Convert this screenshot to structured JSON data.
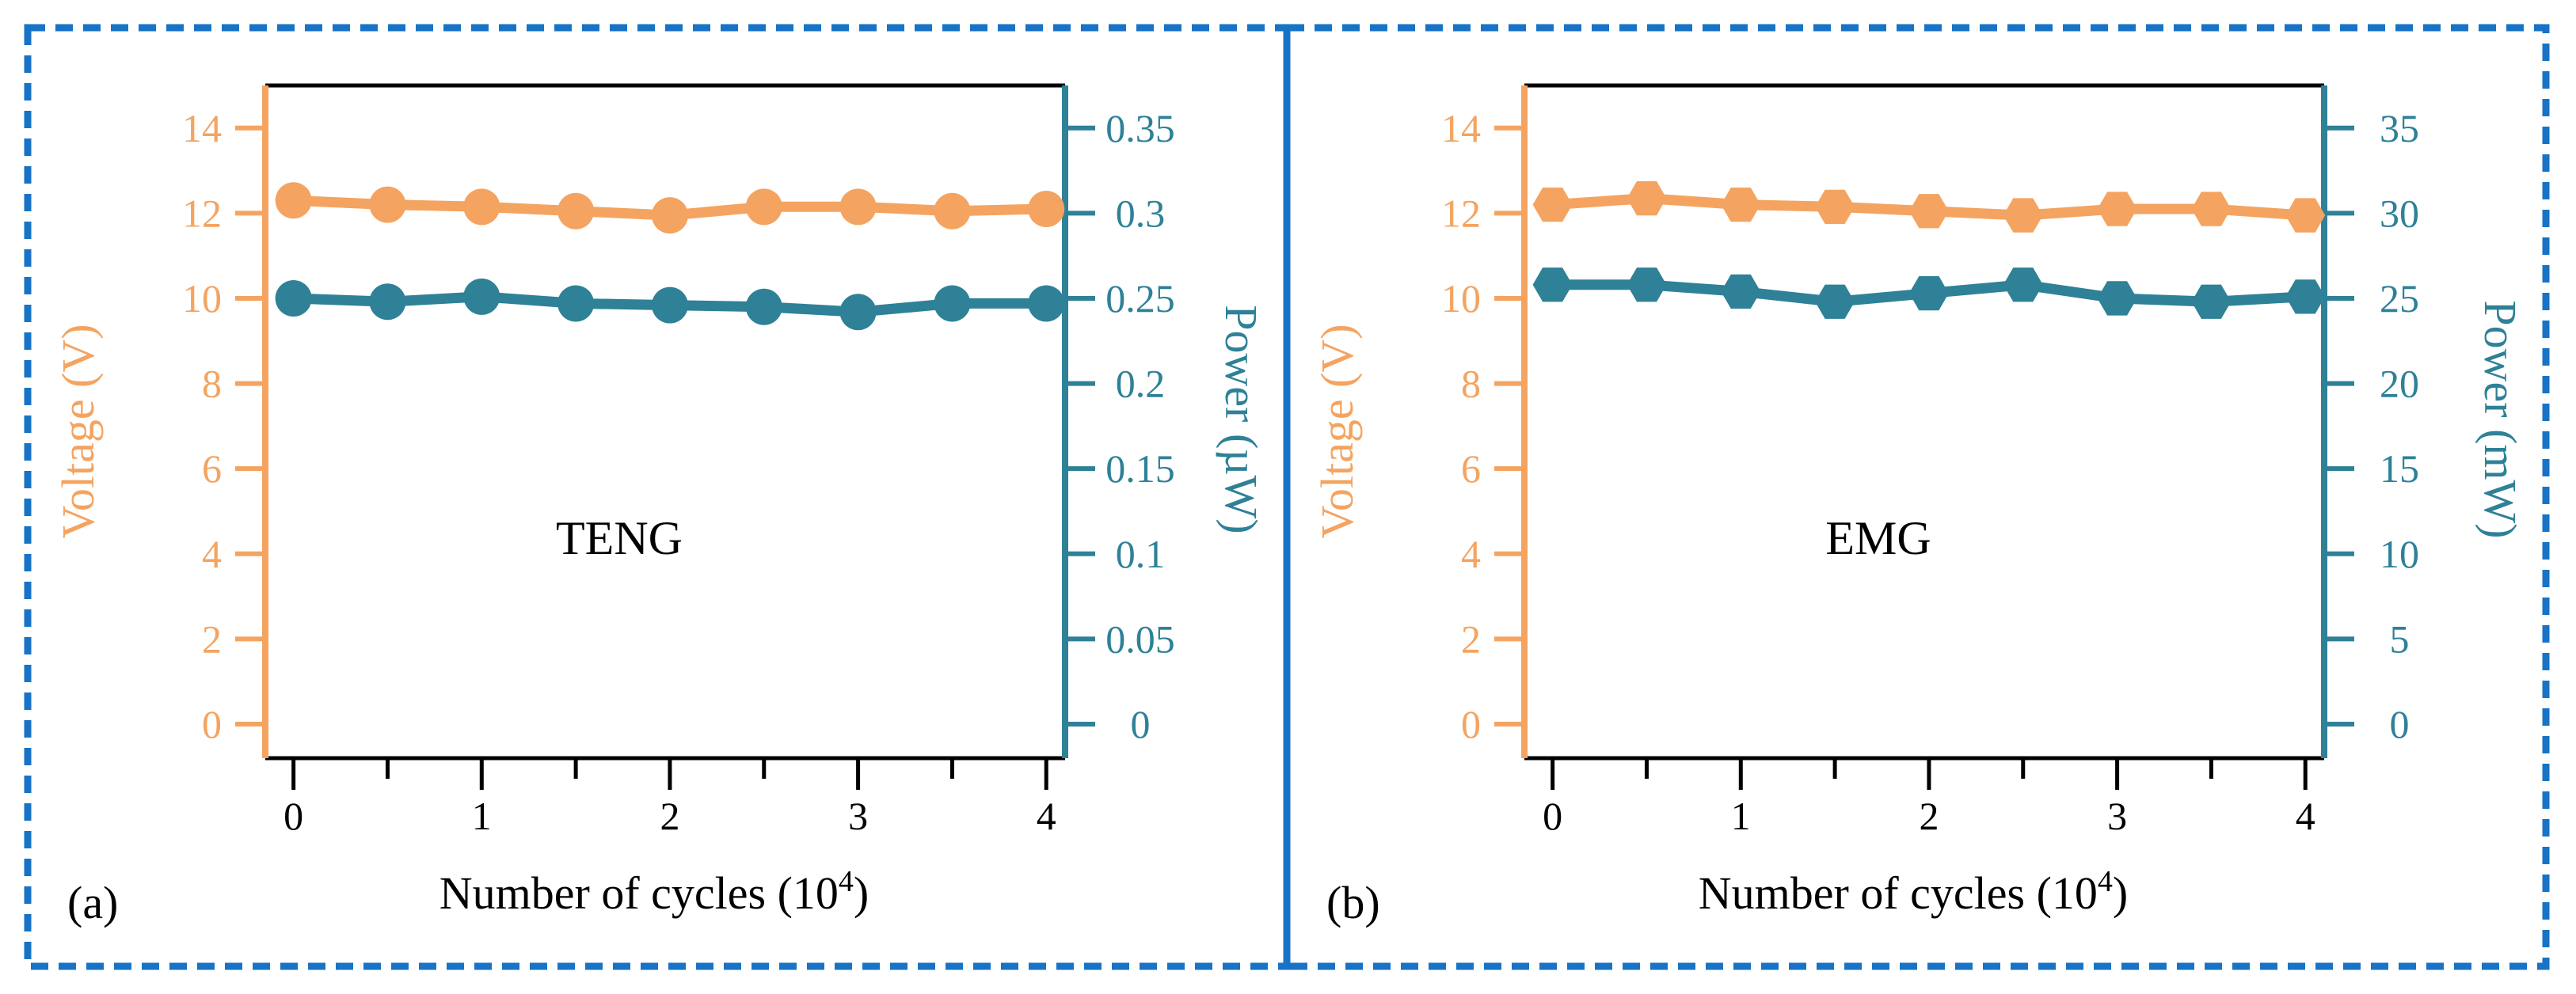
{
  "colors": {
    "voltage": "#F4A460",
    "power": "#2E8197",
    "border": "#1873C6",
    "axis": "#000000"
  },
  "chart_data": [
    {
      "type": "line",
      "panel_label": "(a)",
      "annotation": "TENG",
      "xlabel": "Number of cycles (10",
      "xlabel_sup": "4",
      "xlabel_close": ")",
      "ylabel_left": "Voltage (V)",
      "ylabel_right": "Power (µW)",
      "x": [
        0,
        0.5,
        1,
        1.5,
        2,
        2.5,
        3,
        3.5,
        4
      ],
      "x_ticks": [
        "0",
        "1",
        "2",
        "3",
        "4"
      ],
      "xlim": [
        -0.15,
        4.1
      ],
      "y_left_lim": [
        -0.8,
        15
      ],
      "y_left_ticks": [
        "0",
        "2",
        "4",
        "6",
        "8",
        "10",
        "12",
        "14"
      ],
      "y_right_lim": [
        -0.02,
        0.375
      ],
      "y_right_ticks": [
        "0",
        "0.05",
        "0.1",
        "0.15",
        "0.2",
        "0.25",
        "0.3",
        "0.35"
      ],
      "marker": "circle",
      "series": [
        {
          "name": "Voltage",
          "axis": "left",
          "values": [
            12.3,
            12.2,
            12.15,
            12.05,
            11.95,
            12.15,
            12.15,
            12.05,
            12.1
          ]
        },
        {
          "name": "Power",
          "axis": "right",
          "values": [
            0.25,
            0.248,
            0.251,
            0.247,
            0.246,
            0.245,
            0.242,
            0.247,
            0.247
          ]
        }
      ]
    },
    {
      "type": "line",
      "panel_label": "(b)",
      "annotation": "EMG",
      "xlabel": "Number of cycles (10",
      "xlabel_sup": "4",
      "xlabel_close": ")",
      "ylabel_left": "Voltage (V)",
      "ylabel_right": "Power (mW)",
      "x": [
        0,
        0.5,
        1,
        1.5,
        2,
        2.5,
        3,
        3.5,
        4
      ],
      "x_ticks": [
        "0",
        "1",
        "2",
        "3",
        "4"
      ],
      "xlim": [
        -0.15,
        4.1
      ],
      "y_left_lim": [
        -0.8,
        15
      ],
      "y_left_ticks": [
        "0",
        "2",
        "4",
        "6",
        "8",
        "10",
        "12",
        "14"
      ],
      "y_right_lim": [
        -2.0,
        37.5
      ],
      "y_right_ticks": [
        "0",
        "5",
        "10",
        "15",
        "20",
        "25",
        "30",
        "35"
      ],
      "marker": "hexagon",
      "series": [
        {
          "name": "Voltage",
          "axis": "left",
          "values": [
            12.2,
            12.35,
            12.2,
            12.15,
            12.05,
            11.95,
            12.1,
            12.1,
            11.95
          ]
        },
        {
          "name": "Power",
          "axis": "right",
          "values": [
            25.8,
            25.8,
            25.4,
            24.8,
            25.3,
            25.8,
            25.0,
            24.8,
            25.1
          ]
        }
      ]
    }
  ]
}
